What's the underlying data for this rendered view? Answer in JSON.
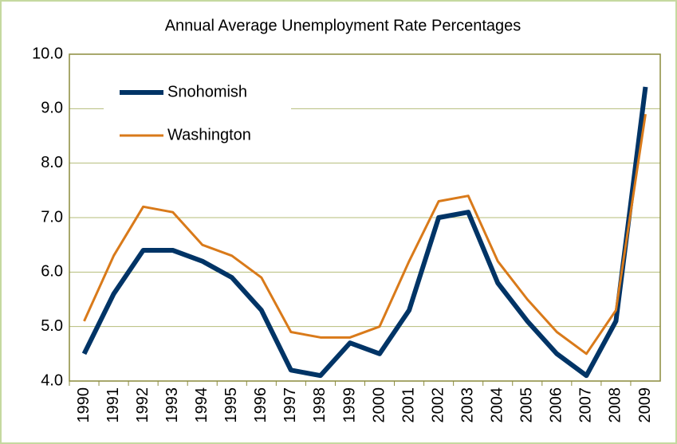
{
  "chart_data": {
    "type": "line",
    "title": "Annual Average Unemployment Rate Percentages",
    "categories": [
      "1990",
      "1991",
      "1992",
      "1993",
      "1994",
      "1995",
      "1996",
      "1997",
      "1998",
      "1999",
      "2000",
      "2001",
      "2002",
      "2003",
      "2004",
      "2005",
      "2006",
      "2007",
      "2008",
      "2009"
    ],
    "series": [
      {
        "name": "Snohomish",
        "color": "#003466",
        "values": [
          4.5,
          5.6,
          6.4,
          6.4,
          6.2,
          5.9,
          5.3,
          4.2,
          4.1,
          4.7,
          4.5,
          5.3,
          7.0,
          7.1,
          5.8,
          5.1,
          4.5,
          4.1,
          5.1,
          9.4
        ]
      },
      {
        "name": "Washington",
        "color": "#d97a1a",
        "values": [
          5.1,
          6.3,
          7.2,
          7.1,
          6.5,
          6.3,
          5.9,
          4.9,
          4.8,
          4.8,
          5.0,
          6.2,
          7.3,
          7.4,
          6.2,
          5.5,
          4.9,
          4.5,
          5.3,
          8.9
        ]
      }
    ],
    "ylim": [
      4,
      10
    ],
    "yticks": [
      {
        "value": 4,
        "label": "4.0"
      },
      {
        "value": 5,
        "label": "5.0"
      },
      {
        "value": 6,
        "label": "6.0"
      },
      {
        "value": 7,
        "label": "7.0"
      },
      {
        "value": 8,
        "label": "8.0"
      },
      {
        "value": 9,
        "label": "9.0"
      },
      {
        "value": 10,
        "label": "10.0"
      }
    ],
    "grid": true,
    "legend": "upper left"
  }
}
